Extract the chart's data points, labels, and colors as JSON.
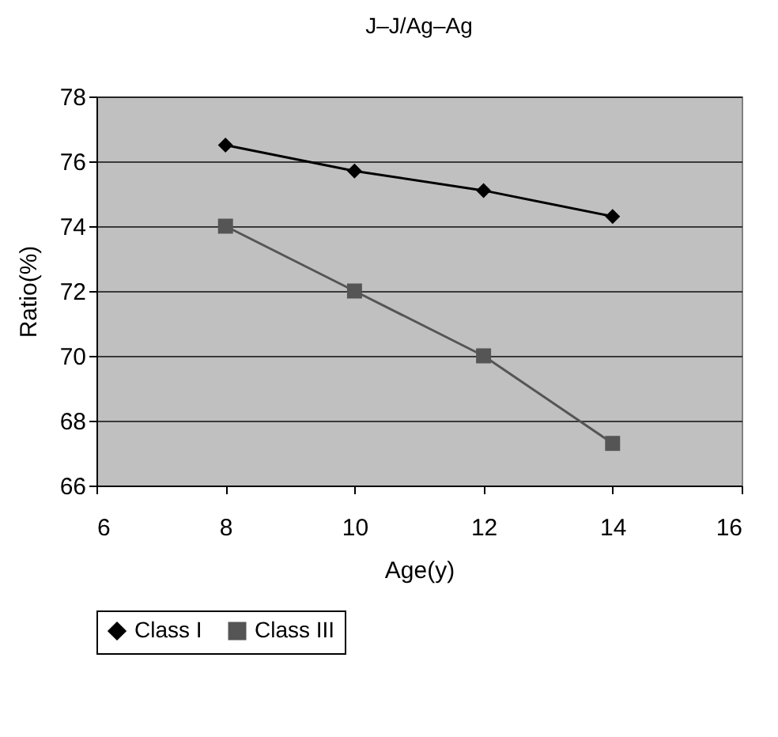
{
  "chart_data": {
    "type": "line",
    "title": "J–J/Ag–Ag",
    "xlabel": "Age(y)",
    "ylabel": "Ratio(%)",
    "x": [
      8,
      10,
      12,
      14
    ],
    "series": [
      {
        "name": "Class I",
        "color": "#000000",
        "marker": "diamond",
        "values": [
          76.5,
          75.7,
          75.1,
          74.3
        ]
      },
      {
        "name": "Class III",
        "color": "#555555",
        "marker": "square",
        "values": [
          74,
          72,
          70,
          67.3
        ]
      }
    ],
    "xlim": [
      6,
      16
    ],
    "xticks": [
      6,
      8,
      10,
      12,
      14,
      16
    ],
    "ylim": [
      66,
      78
    ],
    "yticks": [
      66,
      68,
      70,
      72,
      74,
      76,
      78
    ],
    "grid": "y",
    "legend": "bottom",
    "line_style": "solid"
  }
}
